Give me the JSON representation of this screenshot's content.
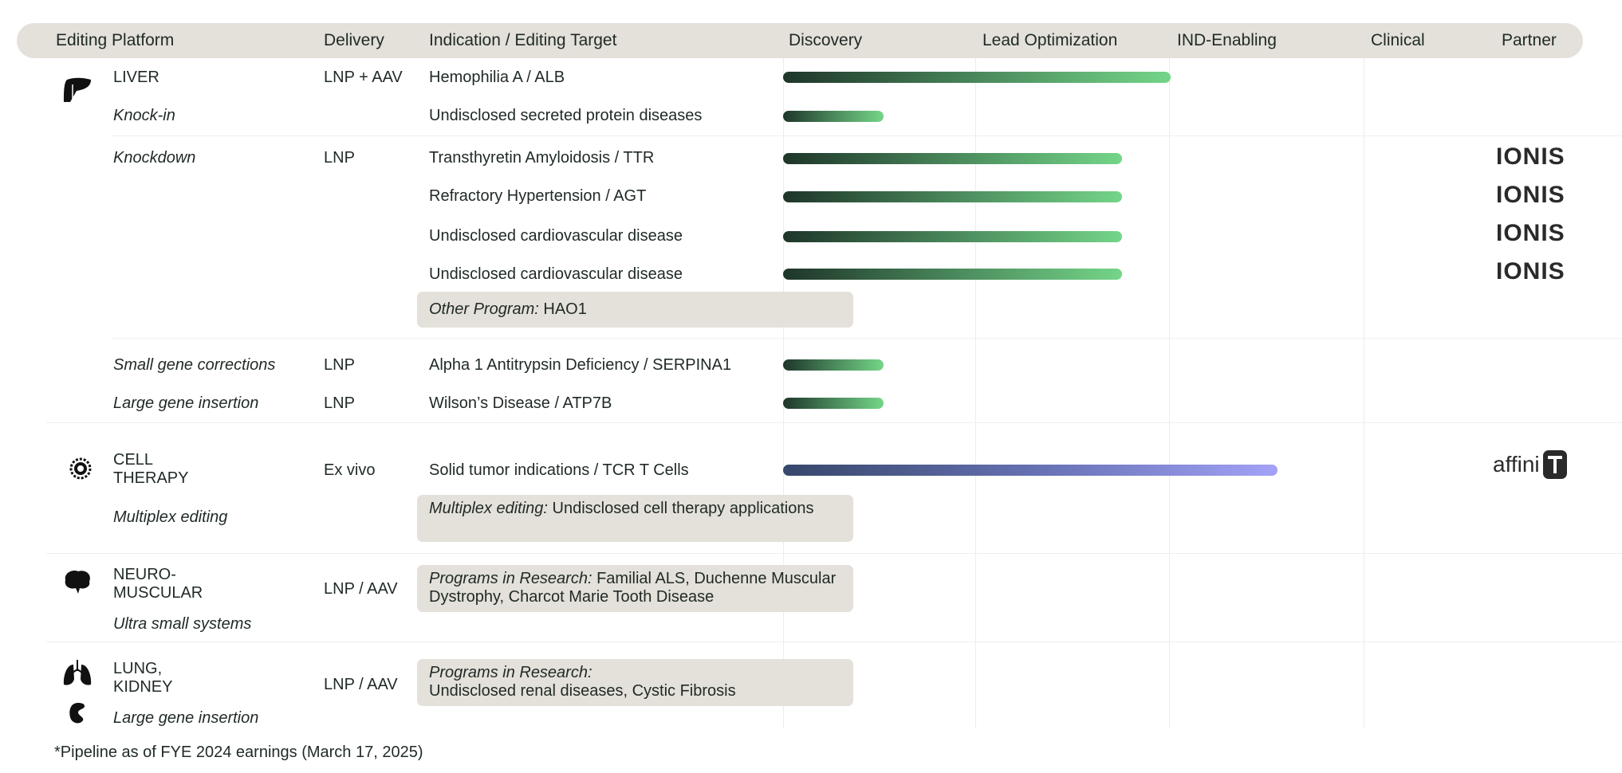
{
  "header": {
    "platform": "Editing Platform",
    "delivery": "Delivery",
    "indication": "Indication / Editing Target",
    "discovery": "Discovery",
    "lead": "Lead Optimization",
    "ind": "IND-Enabling",
    "clinical": "Clinical",
    "partner": "Partner"
  },
  "phases": [
    "Discovery",
    "Lead Optimization",
    "IND-Enabling",
    "Clinical"
  ],
  "colors": {
    "liver_bar": "#74d588",
    "cell_bar": "#a3a2f7",
    "box": "#e4e0da",
    "header": "#e4e0da"
  },
  "liver": {
    "name": "LIVER",
    "icon": "liver-icon",
    "knockin": "Knock-in",
    "knockdown": "Knockdown",
    "small": "Small gene corrections",
    "large": "Large gene insertion"
  },
  "programs": [
    {
      "delivery": "LNP + AAV",
      "indication": "Hemophilia A / ALB",
      "progress_phases": 2.0
    },
    {
      "delivery": "",
      "indication": "Undisclosed secreted protein diseases",
      "progress_phases": 0.52
    },
    {
      "delivery": "LNP",
      "indication": "Transthyretin Amyloidosis / TTR",
      "progress_phases": 1.75,
      "partner": "IONIS"
    },
    {
      "delivery": "",
      "indication": "Refractory Hypertension / AGT",
      "progress_phases": 1.75,
      "partner": "IONIS"
    },
    {
      "delivery": "",
      "indication": "Undisclosed cardiovascular disease",
      "progress_phases": 1.75,
      "partner": "IONIS"
    },
    {
      "delivery": "",
      "indication": "Undisclosed cardiovascular disease",
      "progress_phases": 1.75,
      "partner": "IONIS"
    },
    {
      "delivery": "LNP",
      "indication": "Alpha 1 Antitrypsin Deficiency / SERPINA1",
      "progress_phases": 0.52
    },
    {
      "delivery": "LNP",
      "indication": "Wilson’s Disease / ATP7B",
      "progress_phases": 0.52
    },
    {
      "delivery": "Ex vivo",
      "indication": "Solid tumor indications / TCR T Cells",
      "progress_phases": 2.55,
      "partner": "affini-T"
    }
  ],
  "boxes": {
    "other": {
      "label": "Other Program:",
      "text": " HAO1"
    },
    "multiplex": {
      "label": "Multiplex editing:",
      "text": " Undisclosed cell therapy applications"
    },
    "neuro": {
      "label": "Programs in Research:",
      "text": " Familial ALS, Duchenne Muscular Dystrophy, Charcot Marie Tooth Disease"
    },
    "lung": {
      "label": "Programs in Research:",
      "text": "Undisclosed renal diseases, Cystic Fibrosis"
    }
  },
  "cell": {
    "name1": "CELL",
    "name2": "THERAPY",
    "sub": "Multiplex editing"
  },
  "neuro": {
    "name1": "NEURO-",
    "name2": "MUSCULAR",
    "sub": "Ultra small systems",
    "delivery": "LNP / AAV"
  },
  "lung": {
    "name1": "LUNG,",
    "name2": "KIDNEY",
    "sub": "Large gene insertion",
    "delivery": "LNP / AAV"
  },
  "partners": {
    "ionis": "IONIS",
    "affini": "affini"
  },
  "footnote": "*Pipeline as of FYE 2024 earnings (March 17, 2025)"
}
